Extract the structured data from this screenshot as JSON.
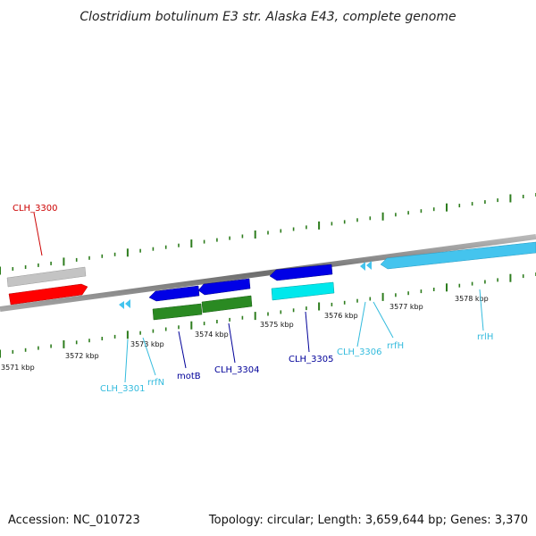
{
  "title": "Clostridium botulinum E3 str. Alaska E43, complete genome",
  "footer": {
    "accession": "Accession: NC_010723",
    "summary": "Topology: circular; Length: 3,659,644 bp; Genes: 3,370"
  },
  "colors": {
    "backbone": "#8c8c8c",
    "ticks": "#2e7d1e",
    "gene_red": "#ff0000",
    "gene_gray": "#c4c4c4",
    "gene_blue": "#0000e6",
    "gene_green": "#2a8a22",
    "gene_cyan": "#00e8ec",
    "rrna": "#44c4ee",
    "label_red": "#cc0000",
    "label_navy": "#000099",
    "label_cyan": "#33bbdd"
  },
  "scale_labels": [
    "3571 kbp",
    "3572 kbp",
    "3573 kbp",
    "3574 kbp",
    "3575 kbp",
    "3576 kbp",
    "3577 kbp",
    "3578 kbp"
  ],
  "gene_labels": [
    {
      "id": "clh3300",
      "text": "CLH_3300",
      "color": "#cc0000"
    },
    {
      "id": "clh3301",
      "text": "CLH_3301",
      "color": "#33bbdd"
    },
    {
      "id": "rrfn",
      "text": "rrfN",
      "color": "#33bbdd"
    },
    {
      "id": "motb",
      "text": "motB",
      "color": "#000099"
    },
    {
      "id": "clh3304",
      "text": "CLH_3304",
      "color": "#000099"
    },
    {
      "id": "clh3305",
      "text": "CLH_3305",
      "color": "#000099"
    },
    {
      "id": "clh3306",
      "text": "CLH_3306",
      "color": "#33bbdd"
    },
    {
      "id": "rrfh",
      "text": "rrfH",
      "color": "#33bbdd"
    },
    {
      "id": "rrlh",
      "text": "rrlH",
      "color": "#33bbdd"
    }
  ]
}
